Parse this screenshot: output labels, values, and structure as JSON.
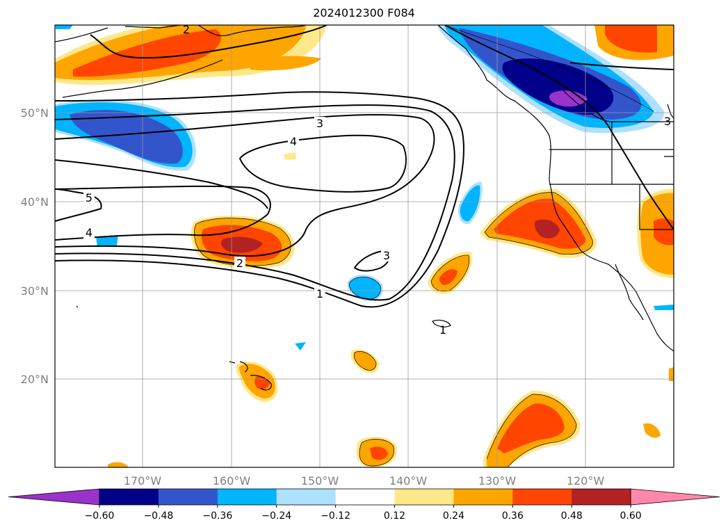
{
  "title": "2024012300 F084",
  "map": {
    "lat_labels": [
      {
        "text": "50°N",
        "lat": 50
      },
      {
        "text": "40°N",
        "lat": 40
      },
      {
        "text": "30°N",
        "lat": 30
      },
      {
        "text": "20°N",
        "lat": 20
      }
    ],
    "lon_labels": [
      {
        "text": "170°W",
        "lon": -170
      },
      {
        "text": "160°W",
        "lon": -160
      },
      {
        "text": "150°W",
        "lon": -150
      },
      {
        "text": "140°W",
        "lon": -140
      },
      {
        "text": "130°W",
        "lon": -130
      },
      {
        "text": "120°W",
        "lon": -120
      }
    ],
    "extent": {
      "lon_min": -180,
      "lon_max": -110,
      "lat_min": 10,
      "lat_max": 60
    },
    "contour_labels": [
      "3",
      "4",
      "5",
      "4",
      "2",
      "1",
      "3",
      "1",
      "2",
      "3"
    ],
    "gridlines": true
  },
  "colorbar": {
    "ticks": [
      "−0.60",
      "−0.48",
      "−0.36",
      "−0.24",
      "−0.12",
      "0.12",
      "0.24",
      "0.36",
      "0.48",
      "0.60"
    ],
    "colors": [
      "#9933cc",
      "#000088",
      "#3355cc",
      "#00b4ff",
      "#aee0ff",
      "#ffffff",
      "#ffe88a",
      "#ffa500",
      "#ff4500",
      "#b22222",
      "#ff88aa"
    ]
  }
}
